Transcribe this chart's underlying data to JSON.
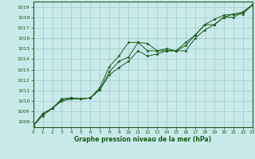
{
  "title": "Graphe pression niveau de la mer (hPa)",
  "xlabel_hours": [
    0,
    1,
    2,
    3,
    4,
    5,
    6,
    7,
    8,
    9,
    10,
    11,
    12,
    13,
    14,
    15,
    16,
    17,
    18,
    19,
    20,
    21,
    22,
    23
  ],
  "ylim": [
    1007.5,
    1019.5
  ],
  "xlim": [
    0,
    23
  ],
  "yticks": [
    1008,
    1009,
    1010,
    1011,
    1012,
    1013,
    1014,
    1015,
    1016,
    1017,
    1018,
    1019
  ],
  "bg_color": "#c8eaea",
  "grid_color": "#9fc9c9",
  "line_color": "#1a5c1a",
  "lines": [
    {
      "x": [
        0,
        1,
        2,
        3,
        4,
        5,
        6,
        7,
        8,
        9,
        10,
        11,
        12,
        13,
        14,
        15,
        16,
        17,
        18,
        19,
        20,
        21,
        22,
        23
      ],
      "y": [
        1007.6,
        1008.8,
        1009.3,
        1010.2,
        1010.3,
        1010.2,
        1010.3,
        1011.3,
        1013.3,
        1014.3,
        1015.6,
        1015.6,
        1015.5,
        1014.8,
        1015.0,
        1014.8,
        1015.3,
        1016.3,
        1017.3,
        1017.8,
        1018.2,
        1018.3,
        1018.5,
        1019.2
      ]
    },
    {
      "x": [
        0,
        1,
        2,
        3,
        4,
        5,
        6,
        7,
        8,
        9,
        10,
        11,
        12,
        13,
        14,
        15,
        16,
        17,
        18,
        19,
        20,
        21,
        22,
        23
      ],
      "y": [
        1007.6,
        1008.8,
        1009.3,
        1010.1,
        1010.3,
        1010.2,
        1010.3,
        1011.1,
        1012.8,
        1013.8,
        1014.2,
        1015.6,
        1014.8,
        1014.8,
        1014.8,
        1014.8,
        1014.8,
        1016.0,
        1016.8,
        1017.3,
        1018.0,
        1018.3,
        1018.3,
        1019.2
      ]
    },
    {
      "x": [
        0,
        1,
        2,
        3,
        4,
        5,
        6,
        7,
        8,
        9,
        10,
        11,
        12,
        13,
        14,
        15,
        16,
        17,
        18,
        19,
        20,
        21,
        22,
        23
      ],
      "y": [
        1007.6,
        1008.6,
        1009.3,
        1010.0,
        1010.2,
        1010.2,
        1010.3,
        1011.1,
        1012.5,
        1013.2,
        1013.8,
        1014.8,
        1014.3,
        1014.5,
        1014.8,
        1014.8,
        1015.6,
        1016.3,
        1017.3,
        1017.3,
        1018.0,
        1018.0,
        1018.5,
        1019.2
      ]
    }
  ]
}
